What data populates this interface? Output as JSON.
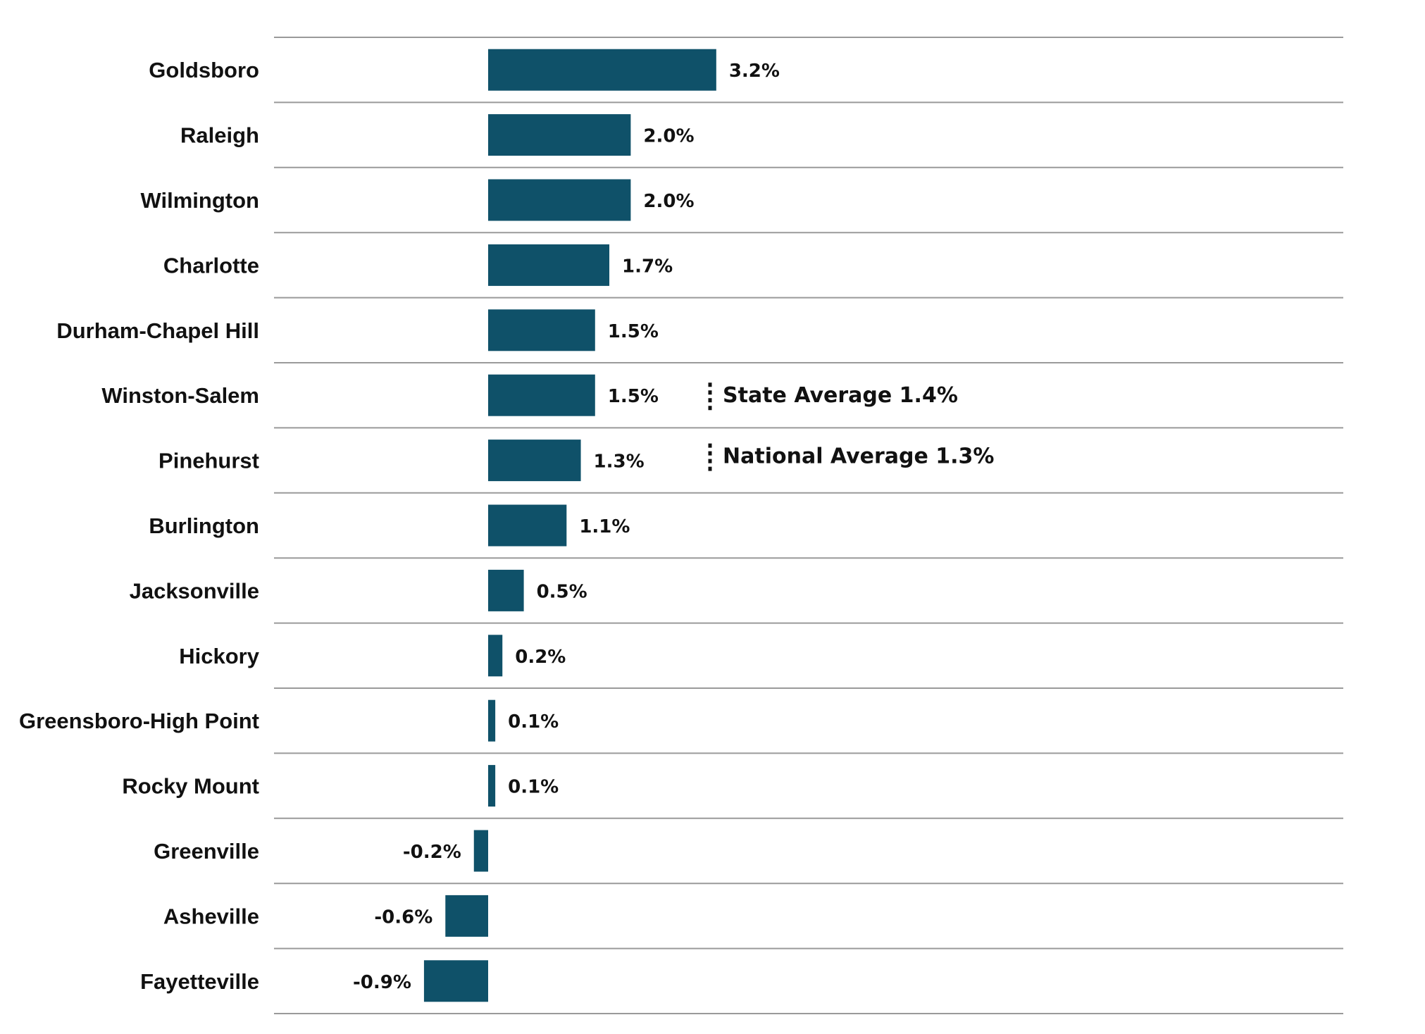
{
  "chart_data": {
    "type": "bar",
    "orientation": "horizontal",
    "title": "",
    "xlabel": "",
    "ylabel": "",
    "bar_color": "#0f5169",
    "grid": "horizontal row separators",
    "legend": "none",
    "xlim": [
      -1.0,
      4.2
    ],
    "categories": [
      "Goldsboro",
      "Raleigh",
      "Wilmington",
      "Charlotte",
      "Durham-Chapel Hill",
      "Winston-Salem",
      "Pinehurst",
      "Burlington",
      "Jacksonville",
      "Hickory",
      "Greensboro-High Point",
      "Rocky Mount",
      "Greenville",
      "Asheville",
      "Fayetteville"
    ],
    "values": [
      3.2,
      2.0,
      2.0,
      1.7,
      1.5,
      1.5,
      1.3,
      1.1,
      0.5,
      0.2,
      0.1,
      0.1,
      -0.2,
      -0.6,
      -0.9
    ],
    "value_labels": [
      "3.2%",
      "2.0%",
      "2.0%",
      "1.7%",
      "1.5%",
      "1.5%",
      "1.3%",
      "1.1%",
      "0.5%",
      "0.2%",
      "0.1%",
      "0.1%",
      "-0.2%",
      "-0.6%",
      "-0.9%"
    ],
    "annotations": [
      {
        "text": "State Average 1.4%",
        "value": 1.4
      },
      {
        "text": "National Average 1.3%",
        "value": 1.3
      }
    ]
  }
}
